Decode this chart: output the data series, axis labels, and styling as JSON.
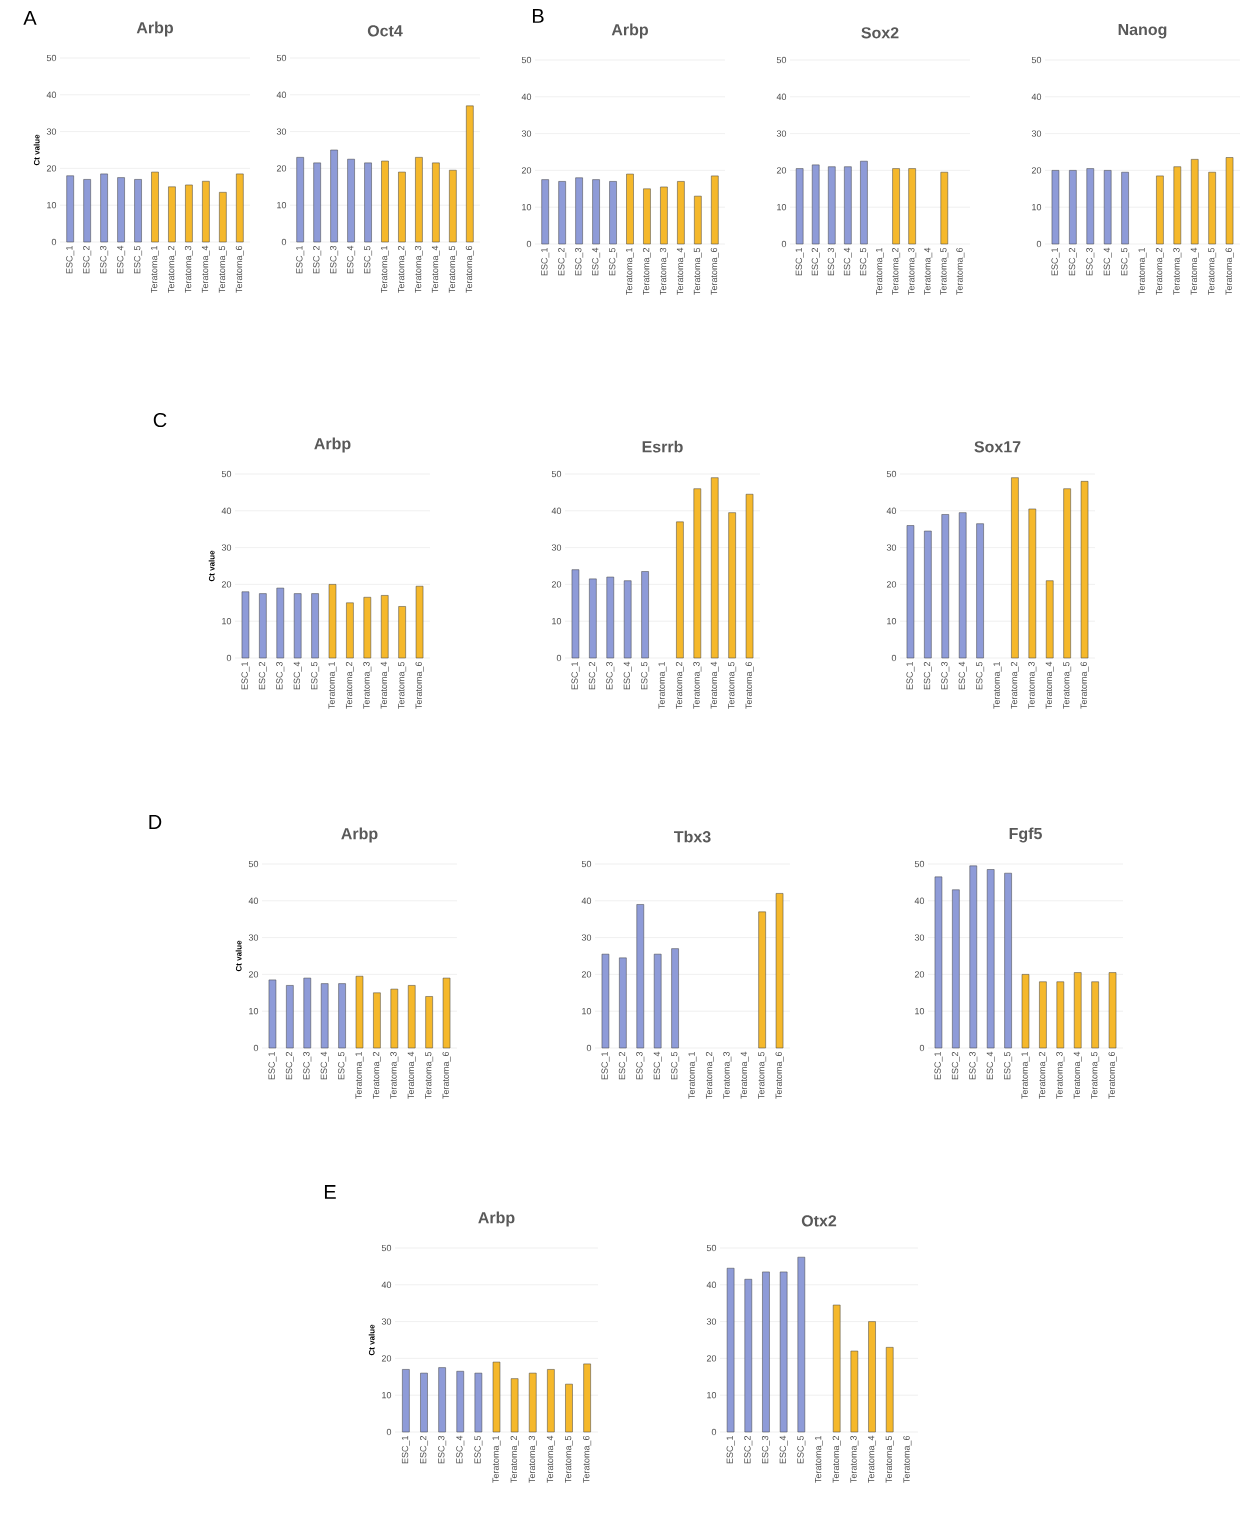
{
  "chart_data": [
    {
      "type": "bar",
      "title": "Arbp",
      "ylabel": "Ct value",
      "annotations": [
        "A"
      ],
      "categories": [
        "ESC_1",
        "ESC_2",
        "ESC_3",
        "ESC_4",
        "ESC_5",
        "Teratoma_1",
        "Teratoma_2",
        "Teratoma_3",
        "Teratoma_4",
        "Teratoma_5",
        "Teratoma_6"
      ],
      "values": [
        18,
        17,
        18.5,
        17.5,
        17,
        19,
        15,
        15.5,
        16.5,
        13.5,
        18.5
      ],
      "colors": [
        "#8e9bd8",
        "#8e9bd8",
        "#8e9bd8",
        "#8e9bd8",
        "#8e9bd8",
        "#f5b82b",
        "#f5b82b",
        "#f5b82b",
        "#f5b82b",
        "#f5b82b",
        "#f5b82b"
      ],
      "ylim": [
        0,
        50
      ],
      "yticks": [
        0,
        10,
        20,
        30,
        40,
        50
      ],
      "grid": "y"
    },
    {
      "type": "bar",
      "title": "Oct4",
      "categories": [
        "ESC_1",
        "ESC_2",
        "ESC_3",
        "ESC_4",
        "ESC_5",
        "Teratoma_1",
        "Teratoma_2",
        "Teratoma_3",
        "Teratoma_4",
        "Teratoma_5",
        "Teratoma_6"
      ],
      "values": [
        23,
        21.5,
        25,
        22.5,
        21.5,
        22,
        19,
        23,
        21.5,
        19.5,
        37
      ],
      "colors": [
        "#8e9bd8",
        "#8e9bd8",
        "#8e9bd8",
        "#8e9bd8",
        "#8e9bd8",
        "#f5b82b",
        "#f5b82b",
        "#f5b82b",
        "#f5b82b",
        "#f5b82b",
        "#f5b82b"
      ],
      "ylim": [
        0,
        50
      ],
      "yticks": [
        0,
        10,
        20,
        30,
        40,
        50
      ],
      "grid": "y"
    },
    {
      "type": "bar",
      "title": "Arbp",
      "annotations": [
        "B"
      ],
      "categories": [
        "ESC_1",
        "ESC_2",
        "ESC_3",
        "ESC_4",
        "ESC_5",
        "Teratoma_1",
        "Teratoma_2",
        "Teratoma_3",
        "Teratoma_4",
        "Teratoma_5",
        "Teratoma_6"
      ],
      "values": [
        17.5,
        17,
        18,
        17.5,
        17,
        19,
        15,
        15.5,
        17,
        13,
        18.5
      ],
      "colors": [
        "#8e9bd8",
        "#8e9bd8",
        "#8e9bd8",
        "#8e9bd8",
        "#8e9bd8",
        "#f5b82b",
        "#f5b82b",
        "#f5b82b",
        "#f5b82b",
        "#f5b82b",
        "#f5b82b"
      ],
      "ylim": [
        0,
        50
      ],
      "yticks": [
        0,
        10,
        20,
        30,
        40,
        50
      ],
      "grid": "y"
    },
    {
      "type": "bar",
      "title": "Sox2",
      "categories": [
        "ESC_1",
        "ESC_2",
        "ESC_3",
        "ESC_4",
        "ESC_5",
        "Teratoma_1",
        "Teratoma_2",
        "Teratoma_3",
        "Teratoma_4",
        "Teratoma_5",
        "Teratoma_6"
      ],
      "values": [
        20.5,
        21.5,
        21,
        21,
        22.5,
        null,
        20.5,
        20.5,
        null,
        19.5,
        null
      ],
      "colors": [
        "#8e9bd8",
        "#8e9bd8",
        "#8e9bd8",
        "#8e9bd8",
        "#8e9bd8",
        "#f5b82b",
        "#f5b82b",
        "#f5b82b",
        "#f5b82b",
        "#f5b82b",
        "#f5b82b"
      ],
      "ylim": [
        0,
        50
      ],
      "yticks": [
        0,
        10,
        20,
        30,
        40,
        50
      ],
      "grid": "y"
    },
    {
      "type": "bar",
      "title": "Nanog",
      "categories": [
        "ESC_1",
        "ESC_2",
        "ESC_3",
        "ESC_4",
        "ESC_5",
        "Teratoma_1",
        "Teratoma_2",
        "Teratoma_3",
        "Teratoma_4",
        "Teratoma_5",
        "Teratoma_6"
      ],
      "values": [
        20,
        20,
        20.5,
        20,
        19.5,
        null,
        18.5,
        21,
        23,
        19.5,
        23.5
      ],
      "colors": [
        "#8e9bd8",
        "#8e9bd8",
        "#8e9bd8",
        "#8e9bd8",
        "#8e9bd8",
        "#f5b82b",
        "#f5b82b",
        "#f5b82b",
        "#f5b82b",
        "#f5b82b",
        "#f5b82b"
      ],
      "ylim": [
        0,
        50
      ],
      "yticks": [
        0,
        10,
        20,
        30,
        40,
        50
      ],
      "grid": "y"
    },
    {
      "type": "bar",
      "title": "Arbp",
      "ylabel": "Ct value",
      "annotations": [
        "C"
      ],
      "categories": [
        "ESC_1",
        "ESC_2",
        "ESC_3",
        "ESC_4",
        "ESC_5",
        "Teratoma_1",
        "Teratoma_2",
        "Teratoma_3",
        "Teratoma_4",
        "Teratoma_5",
        "Teratoma_6"
      ],
      "values": [
        18,
        17.5,
        19,
        17.5,
        17.5,
        20,
        15,
        16.5,
        17,
        14,
        19.5
      ],
      "colors": [
        "#8e9bd8",
        "#8e9bd8",
        "#8e9bd8",
        "#8e9bd8",
        "#8e9bd8",
        "#f5b82b",
        "#f5b82b",
        "#f5b82b",
        "#f5b82b",
        "#f5b82b",
        "#f5b82b"
      ],
      "ylim": [
        0,
        50
      ],
      "yticks": [
        0,
        10,
        20,
        30,
        40,
        50
      ],
      "grid": "y"
    },
    {
      "type": "bar",
      "title": "Esrrb",
      "categories": [
        "ESC_1",
        "ESC_2",
        "ESC_3",
        "ESC_4",
        "ESC_5",
        "Teratoma_1",
        "Teratoma_2",
        "Teratoma_3",
        "Teratoma_4",
        "Teratoma_5",
        "Teratoma_6"
      ],
      "values": [
        24,
        21.5,
        22,
        21,
        23.5,
        null,
        37,
        46,
        49,
        39.5,
        44.5
      ],
      "colors": [
        "#8e9bd8",
        "#8e9bd8",
        "#8e9bd8",
        "#8e9bd8",
        "#8e9bd8",
        "#f5b82b",
        "#f5b82b",
        "#f5b82b",
        "#f5b82b",
        "#f5b82b",
        "#f5b82b"
      ],
      "ylim": [
        0,
        50
      ],
      "yticks": [
        0,
        10,
        20,
        30,
        40,
        50
      ],
      "grid": "y"
    },
    {
      "type": "bar",
      "title": "Sox17",
      "categories": [
        "ESC_1",
        "ESC_2",
        "ESC_3",
        "ESC_4",
        "ESC_5",
        "Teratoma_1",
        "Teratoma_2",
        "Teratoma_3",
        "Teratoma_4",
        "Teratoma_5",
        "Teratoma_6"
      ],
      "values": [
        36,
        34.5,
        39,
        39.5,
        36.5,
        null,
        49,
        40.5,
        21,
        46,
        48
      ],
      "colors": [
        "#8e9bd8",
        "#8e9bd8",
        "#8e9bd8",
        "#8e9bd8",
        "#8e9bd8",
        "#f5b82b",
        "#f5b82b",
        "#f5b82b",
        "#f5b82b",
        "#f5b82b",
        "#f5b82b"
      ],
      "ylim": [
        0,
        50
      ],
      "yticks": [
        0,
        10,
        20,
        30,
        40,
        50
      ],
      "grid": "y"
    },
    {
      "type": "bar",
      "title": "Arbp",
      "ylabel": "Ct value",
      "annotations": [
        "D"
      ],
      "categories": [
        "ESC_1",
        "ESC_2",
        "ESC_3",
        "ESC_4",
        "ESC_5",
        "Teratoma_1",
        "Teratoma_2",
        "Teratoma_3",
        "Teratoma_4",
        "Teratoma_5",
        "Teratoma_6"
      ],
      "values": [
        18.5,
        17,
        19,
        17.5,
        17.5,
        19.5,
        15,
        16,
        17,
        14,
        19
      ],
      "colors": [
        "#8e9bd8",
        "#8e9bd8",
        "#8e9bd8",
        "#8e9bd8",
        "#8e9bd8",
        "#f5b82b",
        "#f5b82b",
        "#f5b82b",
        "#f5b82b",
        "#f5b82b",
        "#f5b82b"
      ],
      "ylim": [
        0,
        50
      ],
      "yticks": [
        0,
        10,
        20,
        30,
        40,
        50
      ],
      "grid": "y"
    },
    {
      "type": "bar",
      "title": "Tbx3",
      "categories": [
        "ESC_1",
        "ESC_2",
        "ESC_3",
        "ESC_4",
        "ESC_5",
        "Teratoma_1",
        "Teratoma_2",
        "Teratoma_3",
        "Teratoma_4",
        "Teratoma_5",
        "Teratoma_6"
      ],
      "values": [
        25.5,
        24.5,
        39,
        25.5,
        27,
        null,
        null,
        null,
        null,
        37,
        42
      ],
      "colors": [
        "#8e9bd8",
        "#8e9bd8",
        "#8e9bd8",
        "#8e9bd8",
        "#8e9bd8",
        "#f5b82b",
        "#f5b82b",
        "#f5b82b",
        "#f5b82b",
        "#f5b82b",
        "#f5b82b"
      ],
      "ylim": [
        0,
        50
      ],
      "yticks": [
        0,
        10,
        20,
        30,
        40,
        50
      ],
      "grid": "y"
    },
    {
      "type": "bar",
      "title": "Fgf5",
      "categories": [
        "ESC_1",
        "ESC_2",
        "ESC_3",
        "ESC_4",
        "ESC_5",
        "Teratoma_1",
        "Teratoma_2",
        "Teratoma_3",
        "Teratoma_4",
        "Teratoma_5",
        "Teratoma_6"
      ],
      "values": [
        46.5,
        43,
        49.5,
        48.5,
        47.5,
        20,
        18,
        18,
        20.5,
        18,
        20.5
      ],
      "colors": [
        "#8e9bd8",
        "#8e9bd8",
        "#8e9bd8",
        "#8e9bd8",
        "#8e9bd8",
        "#f5b82b",
        "#f5b82b",
        "#f5b82b",
        "#f5b82b",
        "#f5b82b",
        "#f5b82b"
      ],
      "ylim": [
        0,
        50
      ],
      "yticks": [
        0,
        10,
        20,
        30,
        40,
        50
      ],
      "grid": "y"
    },
    {
      "type": "bar",
      "title": "Arbp",
      "ylabel": "Ct value",
      "annotations": [
        "E"
      ],
      "categories": [
        "ESC_1",
        "ESC_2",
        "ESC_3",
        "ESC_4",
        "ESC_5",
        "Teratoma_1",
        "Teratoma_2",
        "Teratoma_3",
        "Teratoma_4",
        "Teratoma_5",
        "Teratoma_6"
      ],
      "values": [
        17,
        16,
        17.5,
        16.5,
        16,
        19,
        14.5,
        16,
        17,
        13,
        18.5
      ],
      "colors": [
        "#8e9bd8",
        "#8e9bd8",
        "#8e9bd8",
        "#8e9bd8",
        "#8e9bd8",
        "#f5b82b",
        "#f5b82b",
        "#f5b82b",
        "#f5b82b",
        "#f5b82b",
        "#f5b82b"
      ],
      "ylim": [
        0,
        50
      ],
      "yticks": [
        0,
        10,
        20,
        30,
        40,
        50
      ],
      "grid": "y"
    },
    {
      "type": "bar",
      "title": "Otx2",
      "categories": [
        "ESC_1",
        "ESC_2",
        "ESC_3",
        "ESC_4",
        "ESC_5",
        "Teratoma_1",
        "Teratoma_2",
        "Teratoma_3",
        "Teratoma_4",
        "Teratoma_5",
        "Teratoma_6"
      ],
      "values": [
        44.5,
        41.5,
        43.5,
        43.5,
        47.5,
        null,
        34.5,
        22,
        30,
        23,
        null
      ],
      "colors": [
        "#8e9bd8",
        "#8e9bd8",
        "#8e9bd8",
        "#8e9bd8",
        "#8e9bd8",
        "#f5b82b",
        "#f5b82b",
        "#f5b82b",
        "#f5b82b",
        "#f5b82b",
        "#f5b82b"
      ],
      "ylim": [
        0,
        50
      ],
      "yticks": [
        0,
        10,
        20,
        30,
        40,
        50
      ],
      "grid": "y"
    }
  ]
}
